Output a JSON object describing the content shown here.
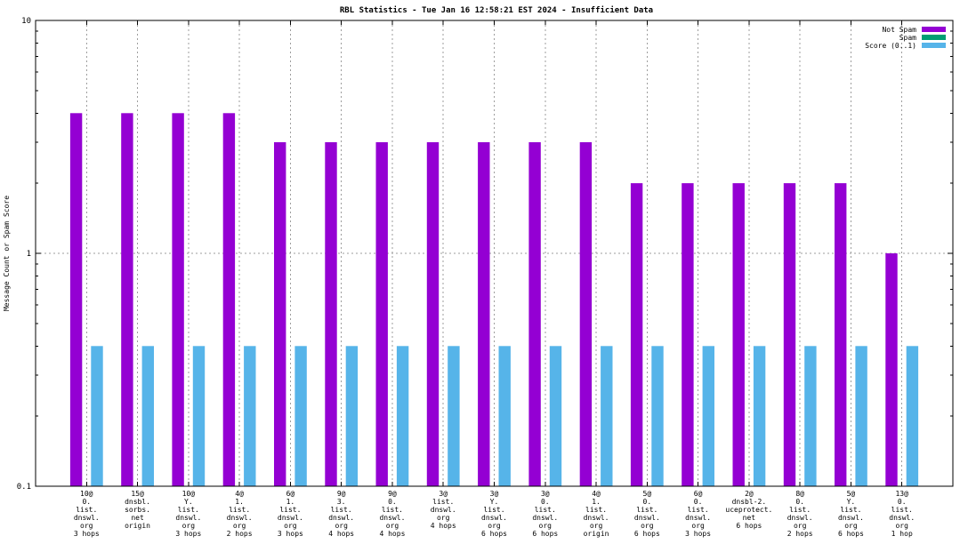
{
  "chart_data": {
    "type": "bar",
    "title": "RBL Statistics - Tue Jan 16 12:58:21 EST 2024 - Insufficient Data",
    "ylabel": "Message Count or Spam Score",
    "xlabel": "",
    "y_scale": "log",
    "ylim": [
      0.1,
      10
    ],
    "ytick_labels": [
      "0.1",
      "1",
      "10"
    ],
    "ytick_values": [
      0.1,
      1,
      10
    ],
    "grid": "dotted grey: vertical line at each category center, horizontal line at y=1",
    "legend_position": "top-right inside plot, no box",
    "background_color": "#ffffff",
    "border_color": "#000000",
    "grid_color": "#9e9e9e",
    "series": [
      {
        "name": "Not Spam",
        "color": "#9400d3",
        "values": [
          4,
          4,
          4,
          4,
          3,
          3,
          3,
          3,
          3,
          3,
          3,
          2,
          2,
          2,
          2,
          2,
          1
        ]
      },
      {
        "name": "Spam",
        "color": "#009e73",
        "values": [
          0,
          0,
          0,
          0,
          0,
          0,
          0,
          0,
          0,
          0,
          0,
          0,
          0,
          0,
          0,
          0,
          0
        ]
      },
      {
        "name": "Score (0..1)",
        "color": "#56b4e9",
        "values": [
          0.4,
          0.4,
          0.4,
          0.4,
          0.4,
          0.4,
          0.4,
          0.4,
          0.4,
          0.4,
          0.4,
          0.4,
          0.4,
          0.4,
          0.4,
          0.4,
          0.4
        ]
      }
    ],
    "categories": [
      [
        "10@",
        "0.",
        "list.",
        "dnswl.",
        "org",
        "3 hops"
      ],
      [
        "15@",
        "dnsbl.",
        "sorbs.",
        "net",
        "origin"
      ],
      [
        "10@",
        "Y.",
        "list.",
        "dnswl.",
        "org",
        "3 hops"
      ],
      [
        "4@",
        "1.",
        "list.",
        "dnswl.",
        "org",
        "2 hops"
      ],
      [
        "6@",
        "1.",
        "list.",
        "dnswl.",
        "org",
        "3 hops"
      ],
      [
        "9@",
        "3.",
        "list.",
        "dnswl.",
        "org",
        "4 hops"
      ],
      [
        "9@",
        "0.",
        "list.",
        "dnswl.",
        "org",
        "4 hops"
      ],
      [
        "3@",
        "list.",
        "dnswl.",
        "org",
        "4 hops"
      ],
      [
        "3@",
        "Y.",
        "list.",
        "dnswl.",
        "org",
        "6 hops"
      ],
      [
        "3@",
        "0.",
        "list.",
        "dnswl.",
        "org",
        "6 hops"
      ],
      [
        "4@",
        "1.",
        "list.",
        "dnswl.",
        "org",
        "origin"
      ],
      [
        "5@",
        "0.",
        "list.",
        "dnswl.",
        "org",
        "6 hops"
      ],
      [
        "6@",
        "0.",
        "list.",
        "dnswl.",
        "org",
        "3 hops"
      ],
      [
        "2@",
        "dnsbl-2.",
        "uceprotect.",
        "net",
        "6 hops"
      ],
      [
        "8@",
        "0.",
        "list.",
        "dnswl.",
        "org",
        "2 hops"
      ],
      [
        "5@",
        "Y.",
        "list.",
        "dnswl.",
        "org",
        "6 hops"
      ],
      [
        "13@",
        "0.",
        "list.",
        "dnswl.",
        "org",
        "1 hop"
      ]
    ]
  }
}
